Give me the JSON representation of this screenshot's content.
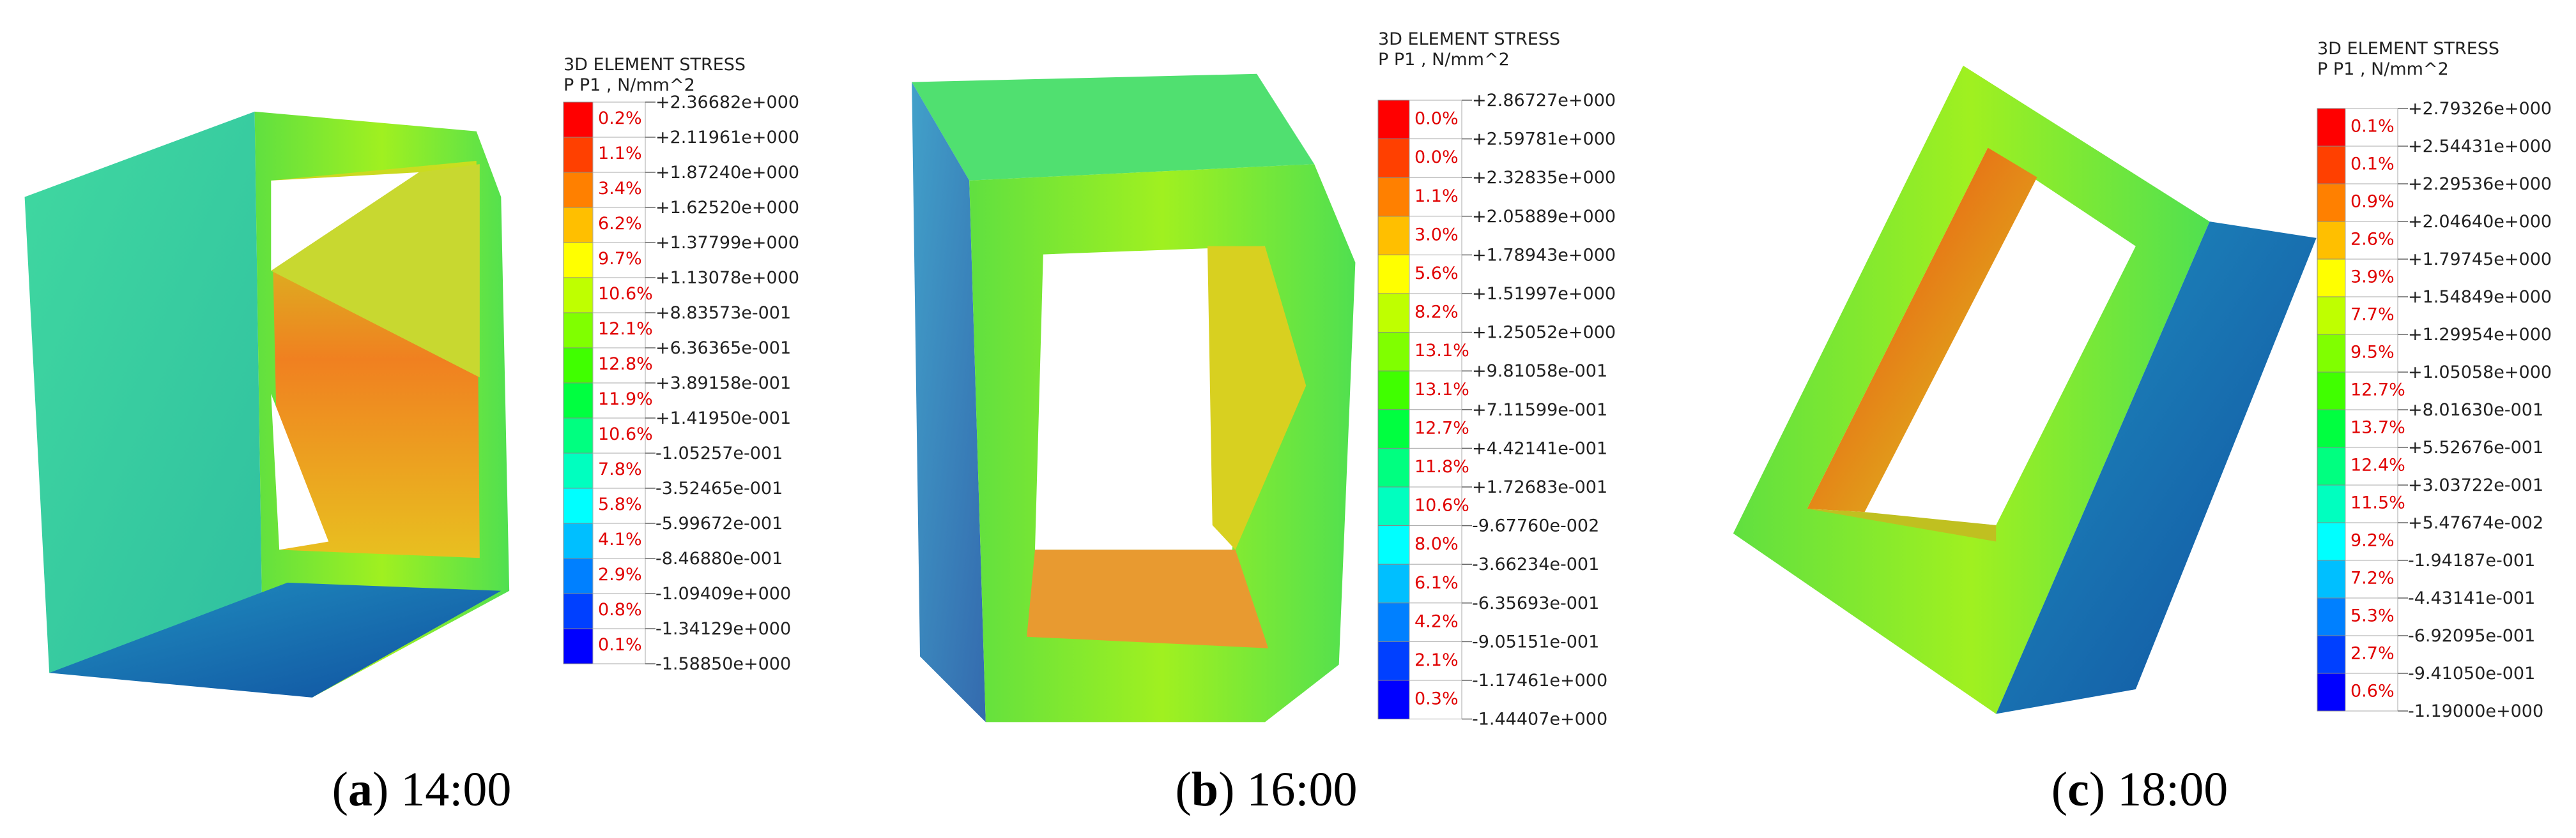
{
  "band_colors": [
    "#ff0000",
    "#ff4000",
    "#ff8000",
    "#ffbf00",
    "#ffff00",
    "#bfff00",
    "#80ff00",
    "#40ff00",
    "#00ff40",
    "#00ff80",
    "#00ffbf",
    "#00ffff",
    "#00bfff",
    "#0080ff",
    "#0040ff",
    "#0000ff"
  ],
  "panels": [
    {
      "legend_title": "3D ELEMENT STRESS",
      "legend_subtitle": "P P1 , N/mm^2",
      "percents": [
        "0.2%",
        "1.1%",
        "3.4%",
        "6.2%",
        "9.7%",
        "10.6%",
        "12.1%",
        "12.8%",
        "11.9%",
        "10.6%",
        "7.8%",
        "5.8%",
        "4.1%",
        "2.9%",
        "0.8%",
        "0.1%"
      ],
      "levels": [
        "+2.36682e+000",
        "+2.11961e+000",
        "+1.87240e+000",
        "+1.62520e+000",
        "+1.37799e+000",
        "+1.13078e+000",
        "+8.83573e-001",
        "+6.36365e-001",
        "+3.89158e-001",
        "+1.41950e-001",
        "-1.05257e-001",
        "-3.52465e-001",
        "-5.99672e-001",
        "-8.46880e-001",
        "-1.09409e+000",
        "-1.34129e+000",
        "-1.58850e+000"
      ],
      "caption": {
        "prefix": "(",
        "letter": "a",
        "suffix": ") 14:00"
      }
    },
    {
      "legend_title": "3D ELEMENT STRESS",
      "legend_subtitle": "P P1 , N/mm^2",
      "percents": [
        "0.0%",
        "0.0%",
        "1.1%",
        "3.0%",
        "5.6%",
        "8.2%",
        "13.1%",
        "13.1%",
        "12.7%",
        "11.8%",
        "10.6%",
        "8.0%",
        "6.1%",
        "4.2%",
        "2.1%",
        "0.3%"
      ],
      "levels": [
        "+2.86727e+000",
        "+2.59781e+000",
        "+2.32835e+000",
        "+2.05889e+000",
        "+1.78943e+000",
        "+1.51997e+000",
        "+1.25052e+000",
        "+9.81058e-001",
        "+7.11599e-001",
        "+4.42141e-001",
        "+1.72683e-001",
        "-9.67760e-002",
        "-3.66234e-001",
        "-6.35693e-001",
        "-9.05151e-001",
        "-1.17461e+000",
        "-1.44407e+000"
      ],
      "caption": {
        "prefix": "(",
        "letter": "b",
        "suffix": ") 16:00"
      }
    },
    {
      "legend_title": "3D ELEMENT STRESS",
      "legend_subtitle": "P P1 , N/mm^2",
      "percents": [
        "0.1%",
        "0.1%",
        "0.9%",
        "2.6%",
        "3.9%",
        "7.7%",
        "9.5%",
        "12.7%",
        "13.7%",
        "12.4%",
        "11.5%",
        "9.2%",
        "7.2%",
        "5.3%",
        "2.7%",
        "0.6%"
      ],
      "levels": [
        "+2.79326e+000",
        "+2.54431e+000",
        "+2.29536e+000",
        "+2.04640e+000",
        "+1.79745e+000",
        "+1.54849e+000",
        "+1.29954e+000",
        "+1.05058e+000",
        "+8.01630e-001",
        "+5.52676e-001",
        "+3.03722e-001",
        "+5.47674e-002",
        "-1.94187e-001",
        "-4.43141e-001",
        "-6.92095e-001",
        "-9.41050e-001",
        "-1.19000e+000"
      ],
      "caption": {
        "prefix": "(",
        "letter": "c",
        "suffix": ") 18:00"
      }
    }
  ]
}
